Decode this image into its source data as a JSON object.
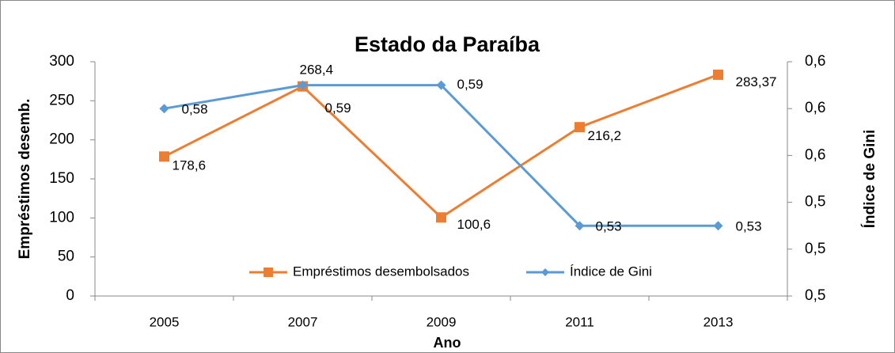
{
  "chart_data": {
    "type": "line",
    "title": "Estado da Paraíba",
    "x_label": "Ano",
    "y_label": "Empréstimos desemb.",
    "y2_label": "Índice de Gini",
    "categories": [
      "2005",
      "2007",
      "2009",
      "2011",
      "2013"
    ],
    "series": [
      {
        "name": "Empréstimos desembolsados",
        "color": "#ed7d31",
        "marker": "square",
        "values": [
          178.6,
          268.4,
          100.6,
          216.2,
          283.37
        ],
        "value_labels": [
          "178,6",
          "268,4",
          "100,6",
          "216,2",
          "283,37"
        ]
      },
      {
        "name": "Índice de Gini",
        "color": "#5b9bd5",
        "marker": "diamond",
        "axis": "y2",
        "values": [
          0.58,
          0.59,
          0.59,
          0.53,
          0.53
        ],
        "value_labels": [
          "0,58",
          "0,59",
          "0,59",
          "0,53",
          "0,53"
        ]
      }
    ],
    "ylim": [
      0,
      300
    ],
    "yticks": [
      0,
      50,
      100,
      150,
      200,
      250,
      300
    ],
    "y2lim": [
      0.5,
      0.6
    ],
    "y2ticks": [
      {
        "value": 0.5,
        "label": "0,5"
      },
      {
        "value": 0.52,
        "label": "0,5"
      },
      {
        "value": 0.54,
        "label": "0,5"
      },
      {
        "value": 0.56,
        "label": "0,6"
      },
      {
        "value": 0.58,
        "label": "0,6"
      },
      {
        "value": 0.6,
        "label": "0,6"
      }
    ],
    "legend": "bottom",
    "grid": false
  }
}
